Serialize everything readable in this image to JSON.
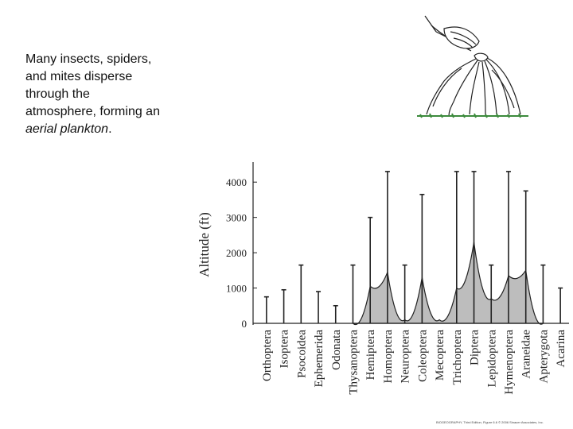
{
  "caption": {
    "line1": "Many insects, spiders,",
    "line2": "and mites disperse",
    "line3": "through the",
    "line4": "atmosphere, forming an",
    "line5_em": "aerial plankton",
    "line5_end": "."
  },
  "illustration": {
    "icon": "ballooning-spider-icon"
  },
  "credit": "BIOGEOGRAPHY, Third Edition, Figure 6.6 © 2006 Sinauer Associates, Inc.",
  "chart_data": {
    "type": "bar",
    "ylabel": "Altitude (ft)",
    "ylim": [
      0,
      4500
    ],
    "yticks": [
      0,
      1000,
      2000,
      3000,
      4000
    ],
    "grid": false,
    "categories": [
      "Orthoptera",
      "Isoptera",
      "Psocoidea",
      "Ephemerida",
      "Odonata",
      "Thysanoptera",
      "Hemiptera",
      "Homoptera",
      "Neuroptera",
      "Coleoptera",
      "Mecoptera",
      "Trichoptera",
      "Diptera",
      "Lepidoptera",
      "Hymenoptera",
      "Araneidae",
      "Apterygota",
      "Acarina"
    ],
    "values": [
      750,
      950,
      1650,
      900,
      500,
      1650,
      3000,
      4300,
      1650,
      3650,
      0,
      4300,
      4300,
      1650,
      4300,
      3750,
      1650,
      1000
    ],
    "density_profile": {
      "description_free": true,
      "points": [
        [
          "Thysanoptera",
          0
        ],
        [
          "Hemiptera",
          1050
        ],
        [
          "Homoptera",
          1450
        ],
        [
          "Neuroptera",
          100
        ],
        [
          "Coleoptera",
          1300
        ],
        [
          "Mecoptera",
          100
        ],
        [
          "Trichoptera",
          1000
        ],
        [
          "Diptera",
          2300
        ],
        [
          "Lepidoptera",
          700
        ],
        [
          "Hymenoptera",
          1350
        ],
        [
          "Araneidae",
          1500
        ],
        [
          "Apterygota",
          0
        ]
      ]
    },
    "colors": {
      "axis": "#222222",
      "fill": "#bdbdbd"
    }
  }
}
